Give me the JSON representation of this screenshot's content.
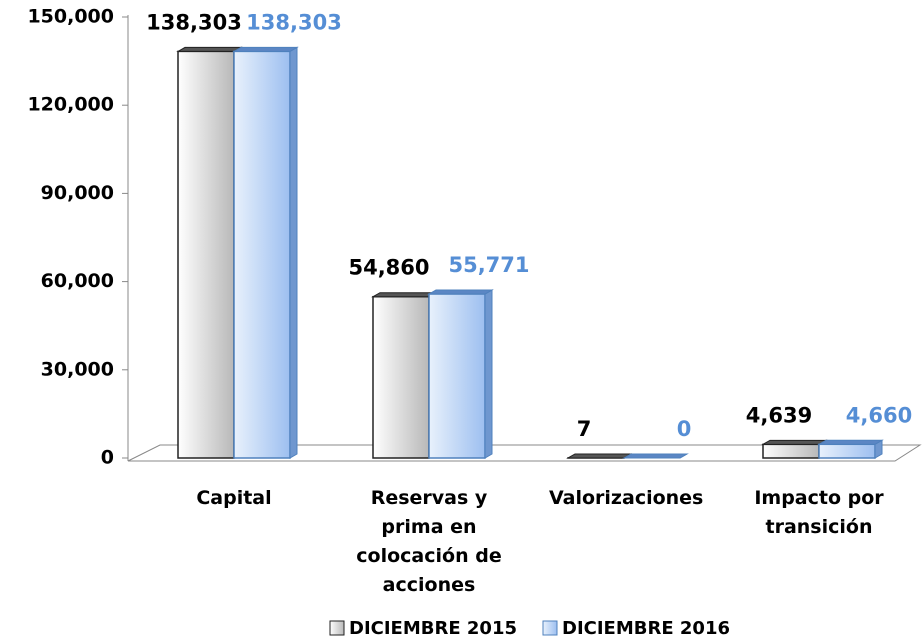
{
  "chart_data": {
    "type": "bar",
    "categories": [
      "Capital",
      "Reservas y prima en colocación de acciones",
      "Valorizaciones",
      "Impacto por transición"
    ],
    "series": [
      {
        "name": "DICIEMBRE 2015",
        "color": "#d9d9d9",
        "label_color": "#000000",
        "values": [
          138303,
          54860,
          7,
          4639
        ],
        "value_labels": [
          "138,303",
          "54,860",
          "7",
          "4,639"
        ]
      },
      {
        "name": "DICIEMBRE 2016",
        "color": "#a9c8f0",
        "label_color": "#558ed5",
        "values": [
          138303,
          55771,
          0,
          4660
        ],
        "value_labels": [
          "138,303",
          "55,771",
          "0",
          "4,660"
        ]
      }
    ],
    "ylim": [
      0,
      150000
    ],
    "yticks": [
      0,
      {
        "value": 30000,
        "label": "30,000"
      },
      {
        "value": 60000,
        "label": "60,000"
      },
      {
        "value": 90000,
        "label": "90,000"
      },
      {
        "value": 120000,
        "label": "120,000"
      },
      {
        "value": 150000,
        "label": "150,000"
      }
    ],
    "legend": "bottom"
  }
}
